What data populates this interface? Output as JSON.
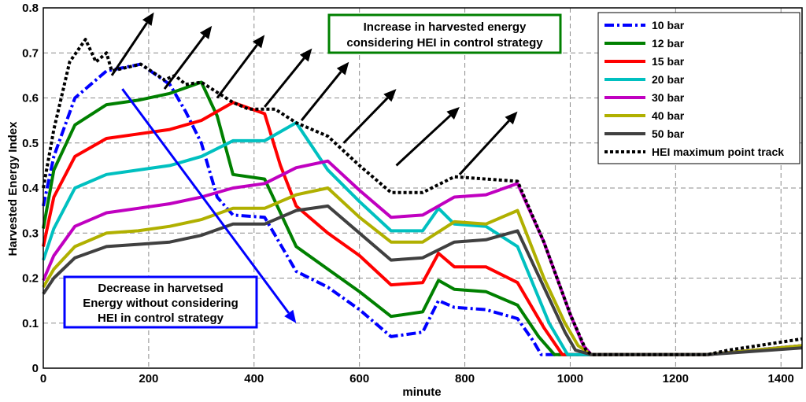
{
  "chart_data": {
    "type": "line",
    "xlabel": "minute",
    "ylabel": "Harvested Energy Index",
    "xlim": [
      0,
      1440
    ],
    "ylim": [
      0,
      0.8
    ],
    "xticks": [
      0,
      200,
      400,
      600,
      800,
      1000,
      1200,
      1400
    ],
    "yticks": [
      0,
      0.1,
      0.2,
      0.3,
      0.4,
      0.5,
      0.6,
      0.7,
      0.8
    ],
    "grid": "dashed",
    "legend_position": "top-right",
    "series": [
      {
        "name": "10 bar",
        "color": "#0000ff",
        "style": "dashdot",
        "points": [
          [
            0,
            0.36
          ],
          [
            20,
            0.47
          ],
          [
            60,
            0.6
          ],
          [
            120,
            0.66
          ],
          [
            185,
            0.675
          ],
          [
            240,
            0.63
          ],
          [
            270,
            0.57
          ],
          [
            300,
            0.5
          ],
          [
            330,
            0.38
          ],
          [
            360,
            0.34
          ],
          [
            420,
            0.335
          ],
          [
            480,
            0.215
          ],
          [
            540,
            0.18
          ],
          [
            600,
            0.13
          ],
          [
            660,
            0.07
          ],
          [
            720,
            0.08
          ],
          [
            750,
            0.15
          ],
          [
            780,
            0.135
          ],
          [
            840,
            0.13
          ],
          [
            900,
            0.11
          ],
          [
            930,
            0.06
          ],
          [
            945,
            0.03
          ],
          [
            1040,
            0.03
          ],
          [
            1100,
            0.03
          ],
          [
            1260,
            0.03
          ],
          [
            1300,
            0.035
          ],
          [
            1440,
            0.05
          ]
        ]
      },
      {
        "name": "12 bar",
        "color": "#008000",
        "style": "solid",
        "points": [
          [
            0,
            0.31
          ],
          [
            20,
            0.44
          ],
          [
            60,
            0.54
          ],
          [
            120,
            0.585
          ],
          [
            180,
            0.595
          ],
          [
            240,
            0.61
          ],
          [
            300,
            0.635
          ],
          [
            330,
            0.56
          ],
          [
            360,
            0.43
          ],
          [
            420,
            0.42
          ],
          [
            480,
            0.27
          ],
          [
            540,
            0.22
          ],
          [
            600,
            0.17
          ],
          [
            660,
            0.115
          ],
          [
            720,
            0.125
          ],
          [
            750,
            0.195
          ],
          [
            780,
            0.175
          ],
          [
            840,
            0.17
          ],
          [
            900,
            0.14
          ],
          [
            940,
            0.07
          ],
          [
            970,
            0.03
          ],
          [
            1040,
            0.03
          ],
          [
            1260,
            0.03
          ],
          [
            1440,
            0.05
          ]
        ]
      },
      {
        "name": "15 bar",
        "color": "#ff0000",
        "style": "solid",
        "points": [
          [
            0,
            0.27
          ],
          [
            20,
            0.38
          ],
          [
            60,
            0.47
          ],
          [
            120,
            0.51
          ],
          [
            180,
            0.52
          ],
          [
            240,
            0.53
          ],
          [
            300,
            0.55
          ],
          [
            360,
            0.59
          ],
          [
            420,
            0.565
          ],
          [
            450,
            0.45
          ],
          [
            480,
            0.36
          ],
          [
            540,
            0.3
          ],
          [
            600,
            0.25
          ],
          [
            660,
            0.185
          ],
          [
            720,
            0.19
          ],
          [
            750,
            0.255
          ],
          [
            780,
            0.225
          ],
          [
            840,
            0.225
          ],
          [
            900,
            0.19
          ],
          [
            950,
            0.09
          ],
          [
            985,
            0.03
          ],
          [
            1040,
            0.03
          ],
          [
            1260,
            0.03
          ],
          [
            1440,
            0.05
          ]
        ]
      },
      {
        "name": "20 bar",
        "color": "#00c0c0",
        "style": "solid",
        "points": [
          [
            0,
            0.24
          ],
          [
            20,
            0.31
          ],
          [
            60,
            0.4
          ],
          [
            120,
            0.43
          ],
          [
            180,
            0.44
          ],
          [
            240,
            0.45
          ],
          [
            300,
            0.47
          ],
          [
            360,
            0.505
          ],
          [
            420,
            0.505
          ],
          [
            480,
            0.545
          ],
          [
            540,
            0.44
          ],
          [
            600,
            0.37
          ],
          [
            660,
            0.305
          ],
          [
            720,
            0.305
          ],
          [
            750,
            0.355
          ],
          [
            780,
            0.32
          ],
          [
            840,
            0.315
          ],
          [
            900,
            0.27
          ],
          [
            960,
            0.1
          ],
          [
            995,
            0.03
          ],
          [
            1040,
            0.03
          ],
          [
            1260,
            0.03
          ],
          [
            1440,
            0.05
          ]
        ]
      },
      {
        "name": "30 bar",
        "color": "#c000c0",
        "style": "solid",
        "points": [
          [
            0,
            0.195
          ],
          [
            20,
            0.25
          ],
          [
            60,
            0.315
          ],
          [
            120,
            0.345
          ],
          [
            180,
            0.355
          ],
          [
            240,
            0.365
          ],
          [
            300,
            0.38
          ],
          [
            360,
            0.4
          ],
          [
            420,
            0.41
          ],
          [
            480,
            0.445
          ],
          [
            540,
            0.46
          ],
          [
            600,
            0.395
          ],
          [
            660,
            0.335
          ],
          [
            720,
            0.34
          ],
          [
            780,
            0.38
          ],
          [
            840,
            0.385
          ],
          [
            900,
            0.41
          ],
          [
            950,
            0.28
          ],
          [
            1000,
            0.12
          ],
          [
            1025,
            0.05
          ],
          [
            1040,
            0.03
          ],
          [
            1260,
            0.03
          ],
          [
            1440,
            0.05
          ]
        ]
      },
      {
        "name": "40 bar",
        "color": "#b0b000",
        "style": "solid",
        "points": [
          [
            0,
            0.18
          ],
          [
            20,
            0.22
          ],
          [
            60,
            0.27
          ],
          [
            120,
            0.3
          ],
          [
            180,
            0.305
          ],
          [
            240,
            0.315
          ],
          [
            300,
            0.33
          ],
          [
            360,
            0.355
          ],
          [
            420,
            0.355
          ],
          [
            480,
            0.385
          ],
          [
            540,
            0.4
          ],
          [
            600,
            0.335
          ],
          [
            660,
            0.28
          ],
          [
            720,
            0.28
          ],
          [
            780,
            0.325
          ],
          [
            840,
            0.32
          ],
          [
            900,
            0.35
          ],
          [
            950,
            0.2
          ],
          [
            990,
            0.1
          ],
          [
            1015,
            0.05
          ],
          [
            1040,
            0.03
          ],
          [
            1260,
            0.03
          ],
          [
            1440,
            0.05
          ]
        ]
      },
      {
        "name": "50 bar",
        "color": "#404040",
        "style": "solid",
        "points": [
          [
            0,
            0.165
          ],
          [
            20,
            0.2
          ],
          [
            60,
            0.245
          ],
          [
            120,
            0.27
          ],
          [
            180,
            0.275
          ],
          [
            240,
            0.28
          ],
          [
            300,
            0.295
          ],
          [
            360,
            0.32
          ],
          [
            420,
            0.32
          ],
          [
            480,
            0.35
          ],
          [
            540,
            0.36
          ],
          [
            600,
            0.3
          ],
          [
            660,
            0.24
          ],
          [
            720,
            0.245
          ],
          [
            780,
            0.28
          ],
          [
            840,
            0.285
          ],
          [
            900,
            0.305
          ],
          [
            950,
            0.18
          ],
          [
            990,
            0.08
          ],
          [
            1010,
            0.04
          ],
          [
            1040,
            0.03
          ],
          [
            1260,
            0.03
          ],
          [
            1440,
            0.045
          ]
        ]
      },
      {
        "name": "HEI maximum point track",
        "color": "#000000",
        "style": "dotted",
        "points": [
          [
            0,
            0.4
          ],
          [
            20,
            0.53
          ],
          [
            50,
            0.68
          ],
          [
            80,
            0.73
          ],
          [
            100,
            0.68
          ],
          [
            120,
            0.7
          ],
          [
            130,
            0.66
          ],
          [
            185,
            0.675
          ],
          [
            230,
            0.64
          ],
          [
            250,
            0.65
          ],
          [
            270,
            0.63
          ],
          [
            300,
            0.635
          ],
          [
            360,
            0.59
          ],
          [
            390,
            0.575
          ],
          [
            440,
            0.575
          ],
          [
            480,
            0.545
          ],
          [
            540,
            0.515
          ],
          [
            600,
            0.45
          ],
          [
            660,
            0.39
          ],
          [
            720,
            0.39
          ],
          [
            780,
            0.425
          ],
          [
            840,
            0.42
          ],
          [
            900,
            0.415
          ],
          [
            950,
            0.28
          ],
          [
            1000,
            0.12
          ],
          [
            1030,
            0.04
          ],
          [
            1040,
            0.03
          ],
          [
            1260,
            0.03
          ],
          [
            1300,
            0.04
          ],
          [
            1440,
            0.065
          ]
        ]
      }
    ],
    "annotations": {
      "increase": {
        "lines": [
          "Increase in harvested energy",
          "considering HEI in control strategy"
        ],
        "border_color": "#008000"
      },
      "decrease": {
        "lines": [
          "Decrease in harvetsed",
          "Energy without considering",
          "HEI in control strategy"
        ],
        "border_color": "#0000ff"
      }
    },
    "arrows": {
      "black": [
        {
          "from": [
            130,
            0.65
          ],
          "to": [
            210,
            0.79
          ]
        },
        {
          "from": [
            230,
            0.62
          ],
          "to": [
            320,
            0.76
          ]
        },
        {
          "from": [
            330,
            0.6
          ],
          "to": [
            420,
            0.74
          ]
        },
        {
          "from": [
            420,
            0.58
          ],
          "to": [
            510,
            0.71
          ]
        },
        {
          "from": [
            490,
            0.55
          ],
          "to": [
            580,
            0.68
          ]
        },
        {
          "from": [
            570,
            0.5
          ],
          "to": [
            670,
            0.62
          ]
        },
        {
          "from": [
            670,
            0.45
          ],
          "to": [
            790,
            0.58
          ]
        },
        {
          "from": [
            790,
            0.43
          ],
          "to": [
            900,
            0.57
          ]
        }
      ],
      "blue": {
        "from": [
          150,
          0.62
        ],
        "to": [
          480,
          0.1
        ]
      }
    }
  }
}
